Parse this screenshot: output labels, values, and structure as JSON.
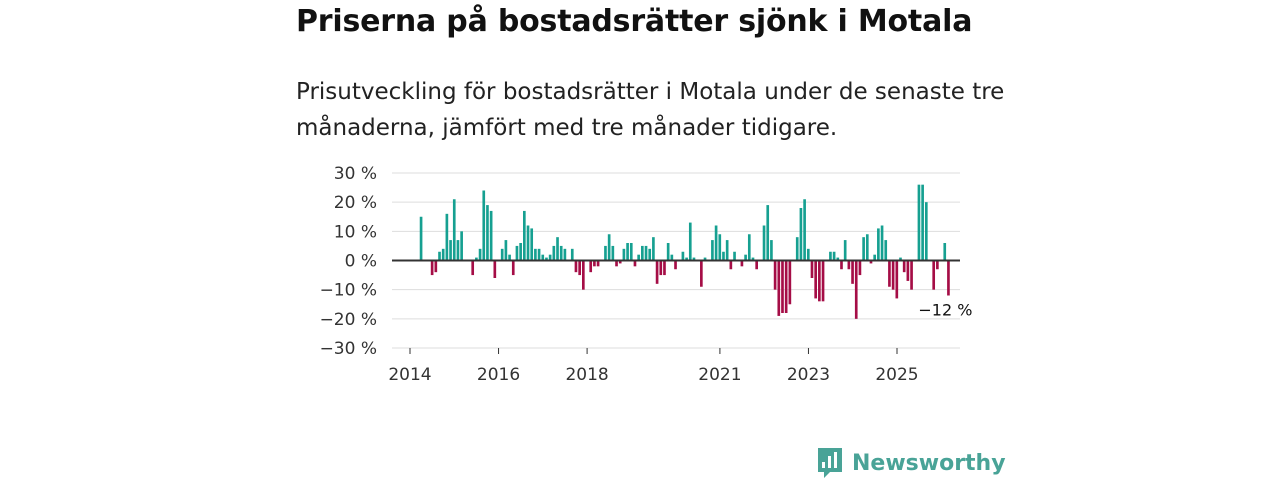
{
  "title": "Priserna på bostadsrätter sjönk i Motala",
  "subtitle": "Prisutveckling för bostadsrätter i Motala under de senaste tre månaderna, jämfört med tre månader tidigare.",
  "brand": {
    "name": "Newsworthy",
    "icon": "newsworthy-logo-icon",
    "color": "#49a397"
  },
  "colors": {
    "positive": "#16a091",
    "negative": "#a50d46",
    "grid": "#dddddd",
    "zero_line": "#333333"
  },
  "chart_data": {
    "type": "bar",
    "ylabel": "",
    "xlabel": "",
    "ylim": [
      -30,
      30
    ],
    "y_ticks": [
      30,
      20,
      10,
      0,
      -10,
      -20,
      -30
    ],
    "y_tick_labels": [
      "30 %",
      "20 %",
      "10 %",
      "0 %",
      "−10 %",
      "−20 %",
      "−30 %"
    ],
    "x_ticks": [
      2014,
      2016,
      2018,
      2021,
      2023,
      2025
    ],
    "x_tick_labels": [
      "2014",
      "2016",
      "2018",
      "2021",
      "2023",
      "2025"
    ],
    "x_range": [
      2014.0,
      2027.0
    ],
    "start": 2014.0,
    "step": 0.0833,
    "values": [
      0,
      0,
      0,
      15,
      0,
      0,
      -5,
      -4,
      3,
      4,
      16,
      7,
      21,
      7,
      10,
      0,
      0,
      -5,
      1,
      4,
      24,
      19,
      17,
      -6,
      0,
      4,
      7,
      2,
      -5,
      5,
      6,
      17,
      12,
      11,
      4,
      4,
      2,
      1,
      2,
      5,
      8,
      5,
      4,
      0,
      4,
      -4,
      -5,
      -10,
      0,
      -4,
      -2,
      -2,
      0,
      5,
      9,
      5,
      -2,
      -1,
      4,
      6,
      6,
      -2,
      2,
      5,
      5,
      4,
      8,
      -8,
      -5,
      -5,
      6,
      2,
      -3,
      0,
      3,
      1,
      13,
      1,
      0,
      -9,
      1,
      0,
      7,
      12,
      9,
      3,
      7,
      -3,
      3,
      0,
      -2,
      2,
      9,
      1,
      -3,
      0,
      12,
      19,
      7,
      -10,
      -19,
      -18,
      -18,
      -15,
      0,
      8,
      18,
      21,
      4,
      -6,
      -13,
      -14,
      -14,
      0,
      3,
      3,
      1,
      -3,
      7,
      -3,
      -8,
      -20,
      -5,
      8,
      9,
      -1,
      2,
      11,
      12,
      7,
      -9,
      -10,
      -13,
      1,
      -4,
      -7,
      -10,
      0,
      26,
      26,
      20,
      0,
      -10,
      -3,
      0,
      6,
      -12
    ],
    "annotation": "−12 %"
  }
}
